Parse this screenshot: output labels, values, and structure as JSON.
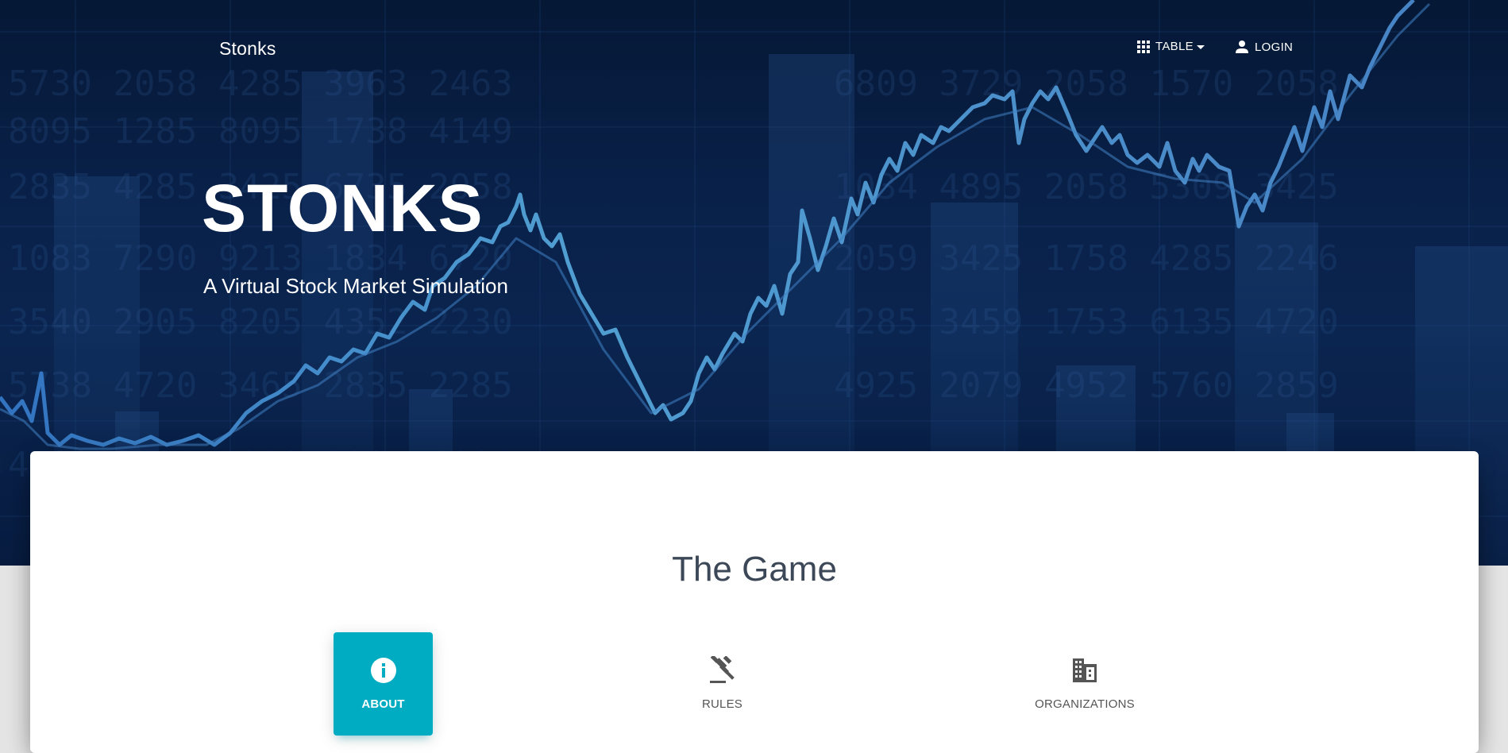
{
  "navbar": {
    "brand": "Stonks",
    "table_label": "TABLE",
    "table_icon": "apps-grid-icon",
    "login_label": "LOGIN",
    "login_icon": "person-icon"
  },
  "hero": {
    "title": "STONKS",
    "subtitle": "A Virtual Stock Market Simulation"
  },
  "section": {
    "title": "The Game",
    "tabs": [
      {
        "label": "ABOUT",
        "icon": "info-icon",
        "active": true
      },
      {
        "label": "RULES",
        "icon": "gavel-icon",
        "active": false
      },
      {
        "label": "ORGANIZATIONS",
        "icon": "business-icon",
        "active": false
      }
    ]
  },
  "colors": {
    "hero_dark": "#061a38",
    "accent": "#00acc1",
    "title_text": "#3c4858",
    "tab_text": "#555555"
  }
}
